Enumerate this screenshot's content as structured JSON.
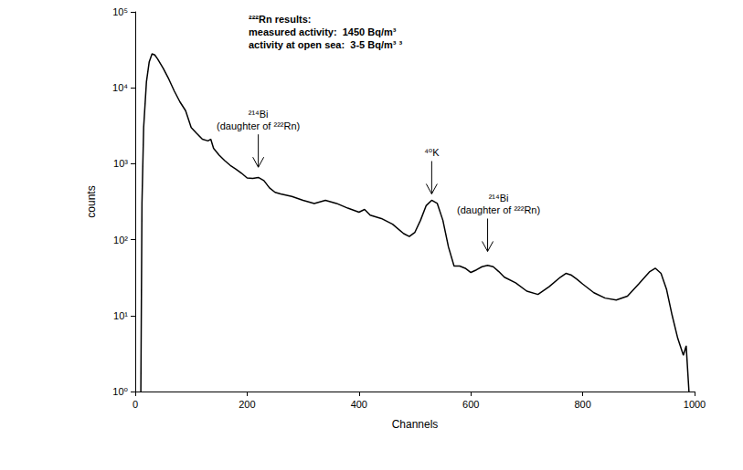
{
  "chart_data": {
    "type": "line",
    "x_label": "Channels",
    "y_label": "counts",
    "x": [
      10,
      12,
      15,
      20,
      25,
      30,
      35,
      40,
      50,
      60,
      70,
      80,
      90,
      100,
      110,
      120,
      130,
      135,
      140,
      150,
      160,
      170,
      180,
      190,
      200,
      210,
      220,
      230,
      240,
      250,
      260,
      280,
      300,
      320,
      340,
      360,
      380,
      400,
      410,
      420,
      440,
      460,
      480,
      490,
      500,
      510,
      520,
      530,
      540,
      550,
      560,
      570,
      580,
      590,
      600,
      610,
      620,
      630,
      640,
      650,
      660,
      680,
      700,
      720,
      740,
      760,
      770,
      780,
      790,
      800,
      820,
      840,
      860,
      880,
      900,
      920,
      930,
      940,
      950,
      960,
      970,
      980,
      985,
      990
    ],
    "values": [
      1,
      300,
      3000,
      12000,
      22000,
      28000,
      27000,
      24000,
      18000,
      13000,
      9000,
      6500,
      5000,
      3000,
      2500,
      2100,
      2000,
      2100,
      1600,
      1300,
      1100,
      950,
      850,
      750,
      650,
      640,
      660,
      600,
      480,
      420,
      400,
      370,
      330,
      300,
      330,
      300,
      260,
      230,
      250,
      210,
      190,
      160,
      120,
      110,
      125,
      180,
      280,
      330,
      300,
      180,
      80,
      45,
      45,
      42,
      37,
      40,
      44,
      46,
      44,
      38,
      32,
      27,
      21,
      19,
      24,
      32,
      36,
      34,
      30,
      26,
      20,
      17,
      16,
      18,
      26,
      38,
      42,
      36,
      22,
      10,
      5,
      3,
      4,
      1
    ],
    "color": "#000000",
    "log": "y",
    "grid": false,
    "xlim": [
      0,
      1000
    ],
    "xticks": [
      0,
      200,
      400,
      600,
      800,
      1000
    ],
    "ylim": [
      1,
      100000
    ],
    "yticks": [
      {
        "value": 1,
        "label": "10⁰"
      },
      {
        "value": 10,
        "label": "10¹"
      },
      {
        "value": 100,
        "label": "10²"
      },
      {
        "value": 1000,
        "label": "10³"
      },
      {
        "value": 10000,
        "label": "10⁴"
      },
      {
        "value": 100000,
        "label": "10⁵"
      }
    ],
    "annotations": [
      {
        "text": "²¹⁴Bi\n(daughter of ²²²Rn)",
        "x": 220,
        "y": 900
      },
      {
        "text": "⁴⁰K",
        "x": 530,
        "y": 400
      },
      {
        "text": "²¹⁴Bi\n(daughter of ²²²Rn)",
        "x": 630,
        "y": 70
      }
    ],
    "info_box": [
      "²²²Rn results:",
      "measured activity:  1450 Bq/m³",
      "activity at open sea:  3-5 Bq/m³ ³"
    ]
  }
}
